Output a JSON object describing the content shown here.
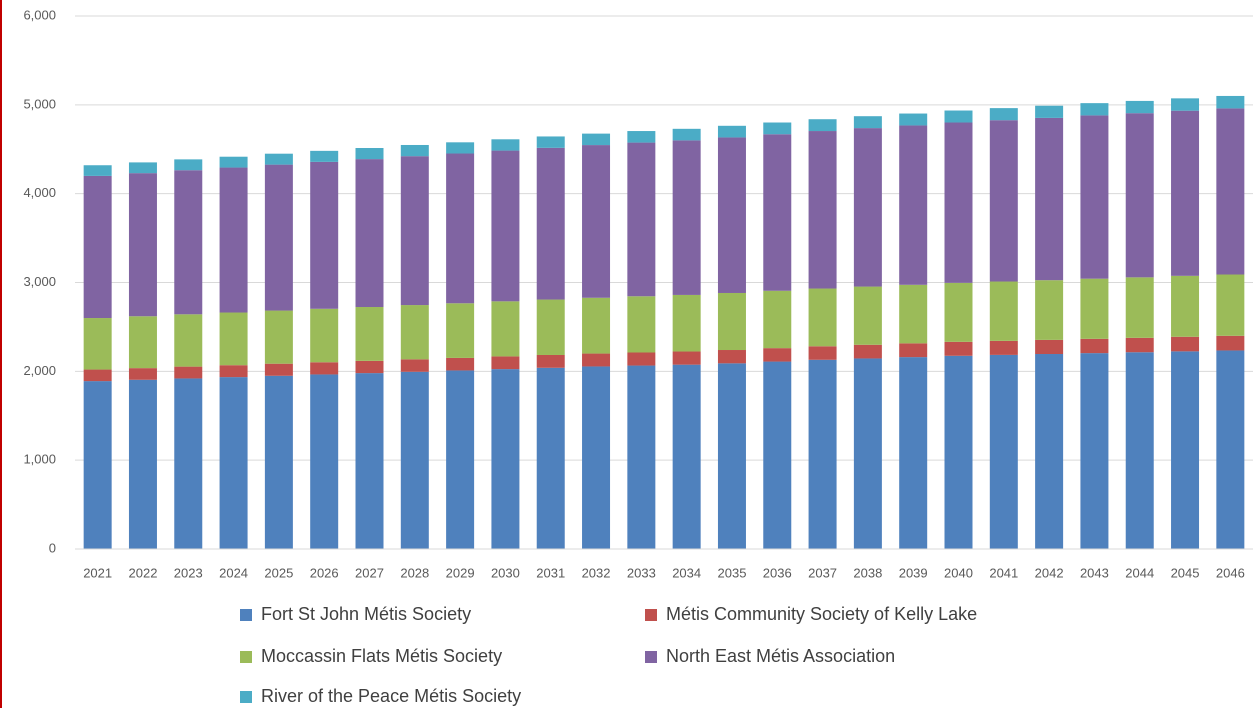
{
  "chart_data": {
    "type": "stacked_bar",
    "categories": [
      "2021",
      "2022",
      "2023",
      "2024",
      "2025",
      "2026",
      "2027",
      "2028",
      "2029",
      "2030",
      "2031",
      "2032",
      "2033",
      "2034",
      "2035",
      "2036",
      "2037",
      "2038",
      "2039",
      "2040",
      "2041",
      "2042",
      "2043",
      "2044",
      "2045",
      "2046"
    ],
    "series": [
      {
        "name": "Fort St John Métis Society",
        "color": "#4f81bd",
        "values": [
          1890,
          1905,
          1920,
          1935,
          1950,
          1965,
          1980,
          1995,
          2010,
          2025,
          2040,
          2055,
          2065,
          2075,
          2090,
          2110,
          2130,
          2145,
          2160,
          2175,
          2185,
          2195,
          2205,
          2215,
          2225,
          2235
        ]
      },
      {
        "name": "Métis Community Society of Kelly Lake",
        "color": "#c0504d",
        "values": [
          130,
          131,
          133,
          134,
          136,
          137,
          138,
          140,
          141,
          143,
          144,
          145,
          147,
          148,
          150,
          151,
          152,
          154,
          155,
          157,
          158,
          159,
          161,
          162,
          164,
          165
        ]
      },
      {
        "name": "Moccassin Flats Métis Society",
        "color": "#9bbb59",
        "values": [
          580,
          584,
          589,
          593,
          598,
          602,
          606,
          611,
          615,
          620,
          624,
          628,
          633,
          637,
          642,
          646,
          650,
          655,
          659,
          664,
          668,
          672,
          677,
          681,
          686,
          690
        ]
      },
      {
        "name": "North East Métis Association",
        "color": "#8064a2",
        "values": [
          1600,
          1611,
          1622,
          1632,
          1643,
          1654,
          1665,
          1676,
          1686,
          1697,
          1708,
          1719,
          1730,
          1740,
          1751,
          1762,
          1773,
          1784,
          1794,
          1805,
          1816,
          1827,
          1838,
          1848,
          1859,
          1870
        ]
      },
      {
        "name": "River of the Peace Métis Society",
        "color": "#4bacc6",
        "values": [
          120,
          121,
          122,
          122,
          123,
          124,
          125,
          126,
          126,
          127,
          128,
          129,
          130,
          130,
          131,
          132,
          133,
          134,
          134,
          135,
          136,
          137,
          138,
          138,
          139,
          140
        ]
      }
    ],
    "ylim": [
      0,
      6000
    ],
    "yticks": [
      0,
      {
        "value": 1000,
        "label": "1,000"
      },
      {
        "value": 2000,
        "label": "2,000"
      },
      {
        "value": 3000,
        "label": "3,000"
      },
      {
        "value": 4000,
        "label": "4,000"
      },
      {
        "value": 5000,
        "label": "5,000"
      },
      {
        "value": 6000,
        "label": "6,000"
      }
    ],
    "grid": true
  }
}
